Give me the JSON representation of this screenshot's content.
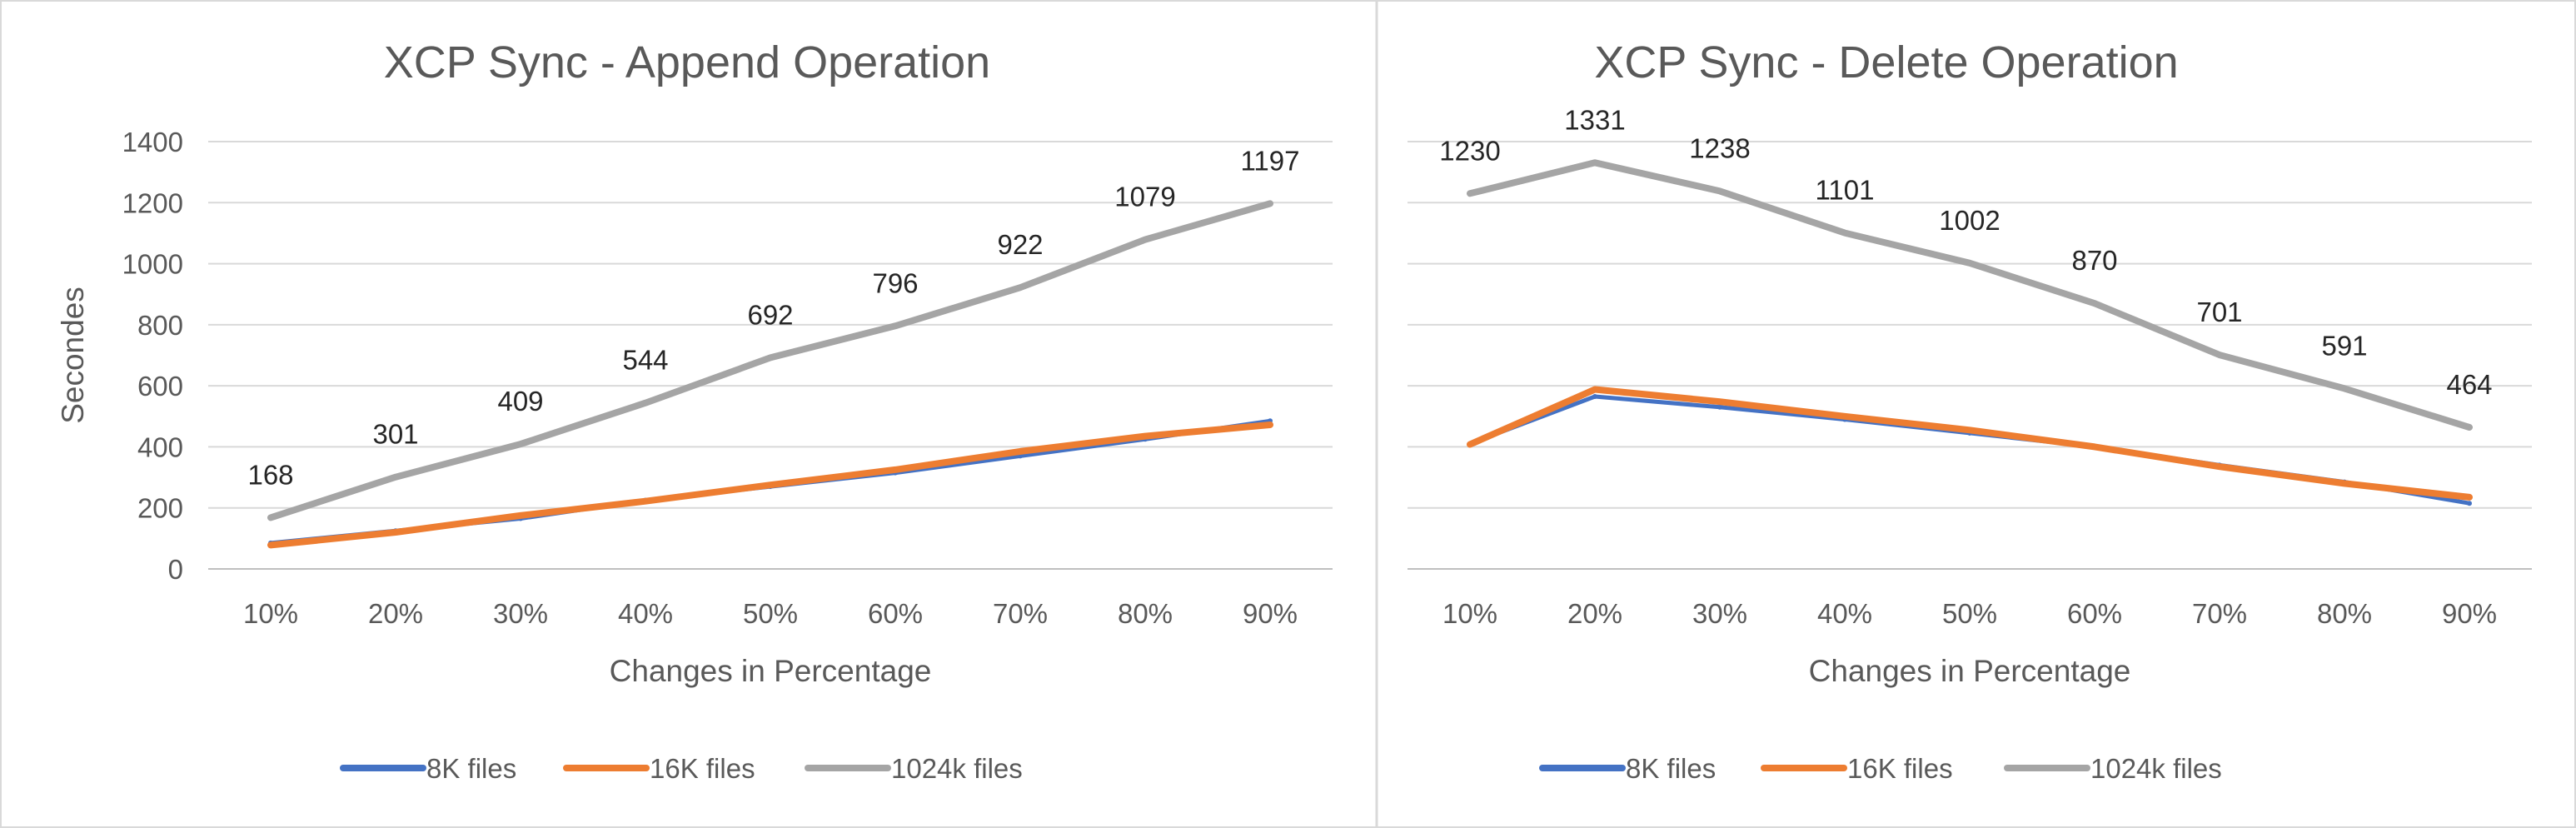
{
  "chart_data": [
    {
      "type": "line",
      "title": "XCP Sync - Append Operation",
      "xlabel": "Changes in Percentage",
      "ylabel": "Secondes",
      "categories": [
        "10%",
        "20%",
        "30%",
        "40%",
        "50%",
        "60%",
        "70%",
        "80%",
        "90%"
      ],
      "ylim": [
        0,
        1400
      ],
      "yticks": [
        "0",
        "200",
        "400",
        "600",
        "800",
        "1000",
        "1200",
        "1400"
      ],
      "show_y_axis_labels": true,
      "grid": true,
      "legend_position": "bottom",
      "series": [
        {
          "name": "8K files",
          "color": "#4472C4",
          "values": [
            85,
            125,
            165,
            225,
            270,
            315,
            370,
            425,
            485
          ],
          "data_labels": false
        },
        {
          "name": "16K files",
          "color": "#ED7D31",
          "values": [
            78,
            120,
            175,
            222,
            275,
            325,
            385,
            435,
            472
          ],
          "data_labels": false
        },
        {
          "name": "1024k files",
          "color": "#A5A5A5",
          "values": [
            168,
            301,
            409,
            544,
            692,
            796,
            922,
            1079,
            1197
          ],
          "data_labels": true
        }
      ]
    },
    {
      "type": "line",
      "title": "XCP Sync - Delete Operation",
      "xlabel": "Changes in Percentage",
      "ylabel": "",
      "categories": [
        "10%",
        "20%",
        "30%",
        "40%",
        "50%",
        "60%",
        "70%",
        "80%",
        "90%"
      ],
      "ylim": [
        0,
        1400
      ],
      "yticks": [],
      "show_y_axis_labels": false,
      "grid": true,
      "legend_position": "bottom",
      "series": [
        {
          "name": "8K files",
          "color": "#4472C4",
          "values": [
            410,
            565,
            530,
            490,
            445,
            400,
            340,
            285,
            215
          ],
          "data_labels": false
        },
        {
          "name": "16K files",
          "color": "#ED7D31",
          "values": [
            408,
            588,
            548,
            500,
            455,
            400,
            335,
            280,
            235
          ],
          "data_labels": false
        },
        {
          "name": "1024k files",
          "color": "#A5A5A5",
          "values": [
            1230,
            1331,
            1238,
            1101,
            1002,
            870,
            701,
            591,
            464
          ],
          "data_labels": true
        }
      ]
    }
  ]
}
